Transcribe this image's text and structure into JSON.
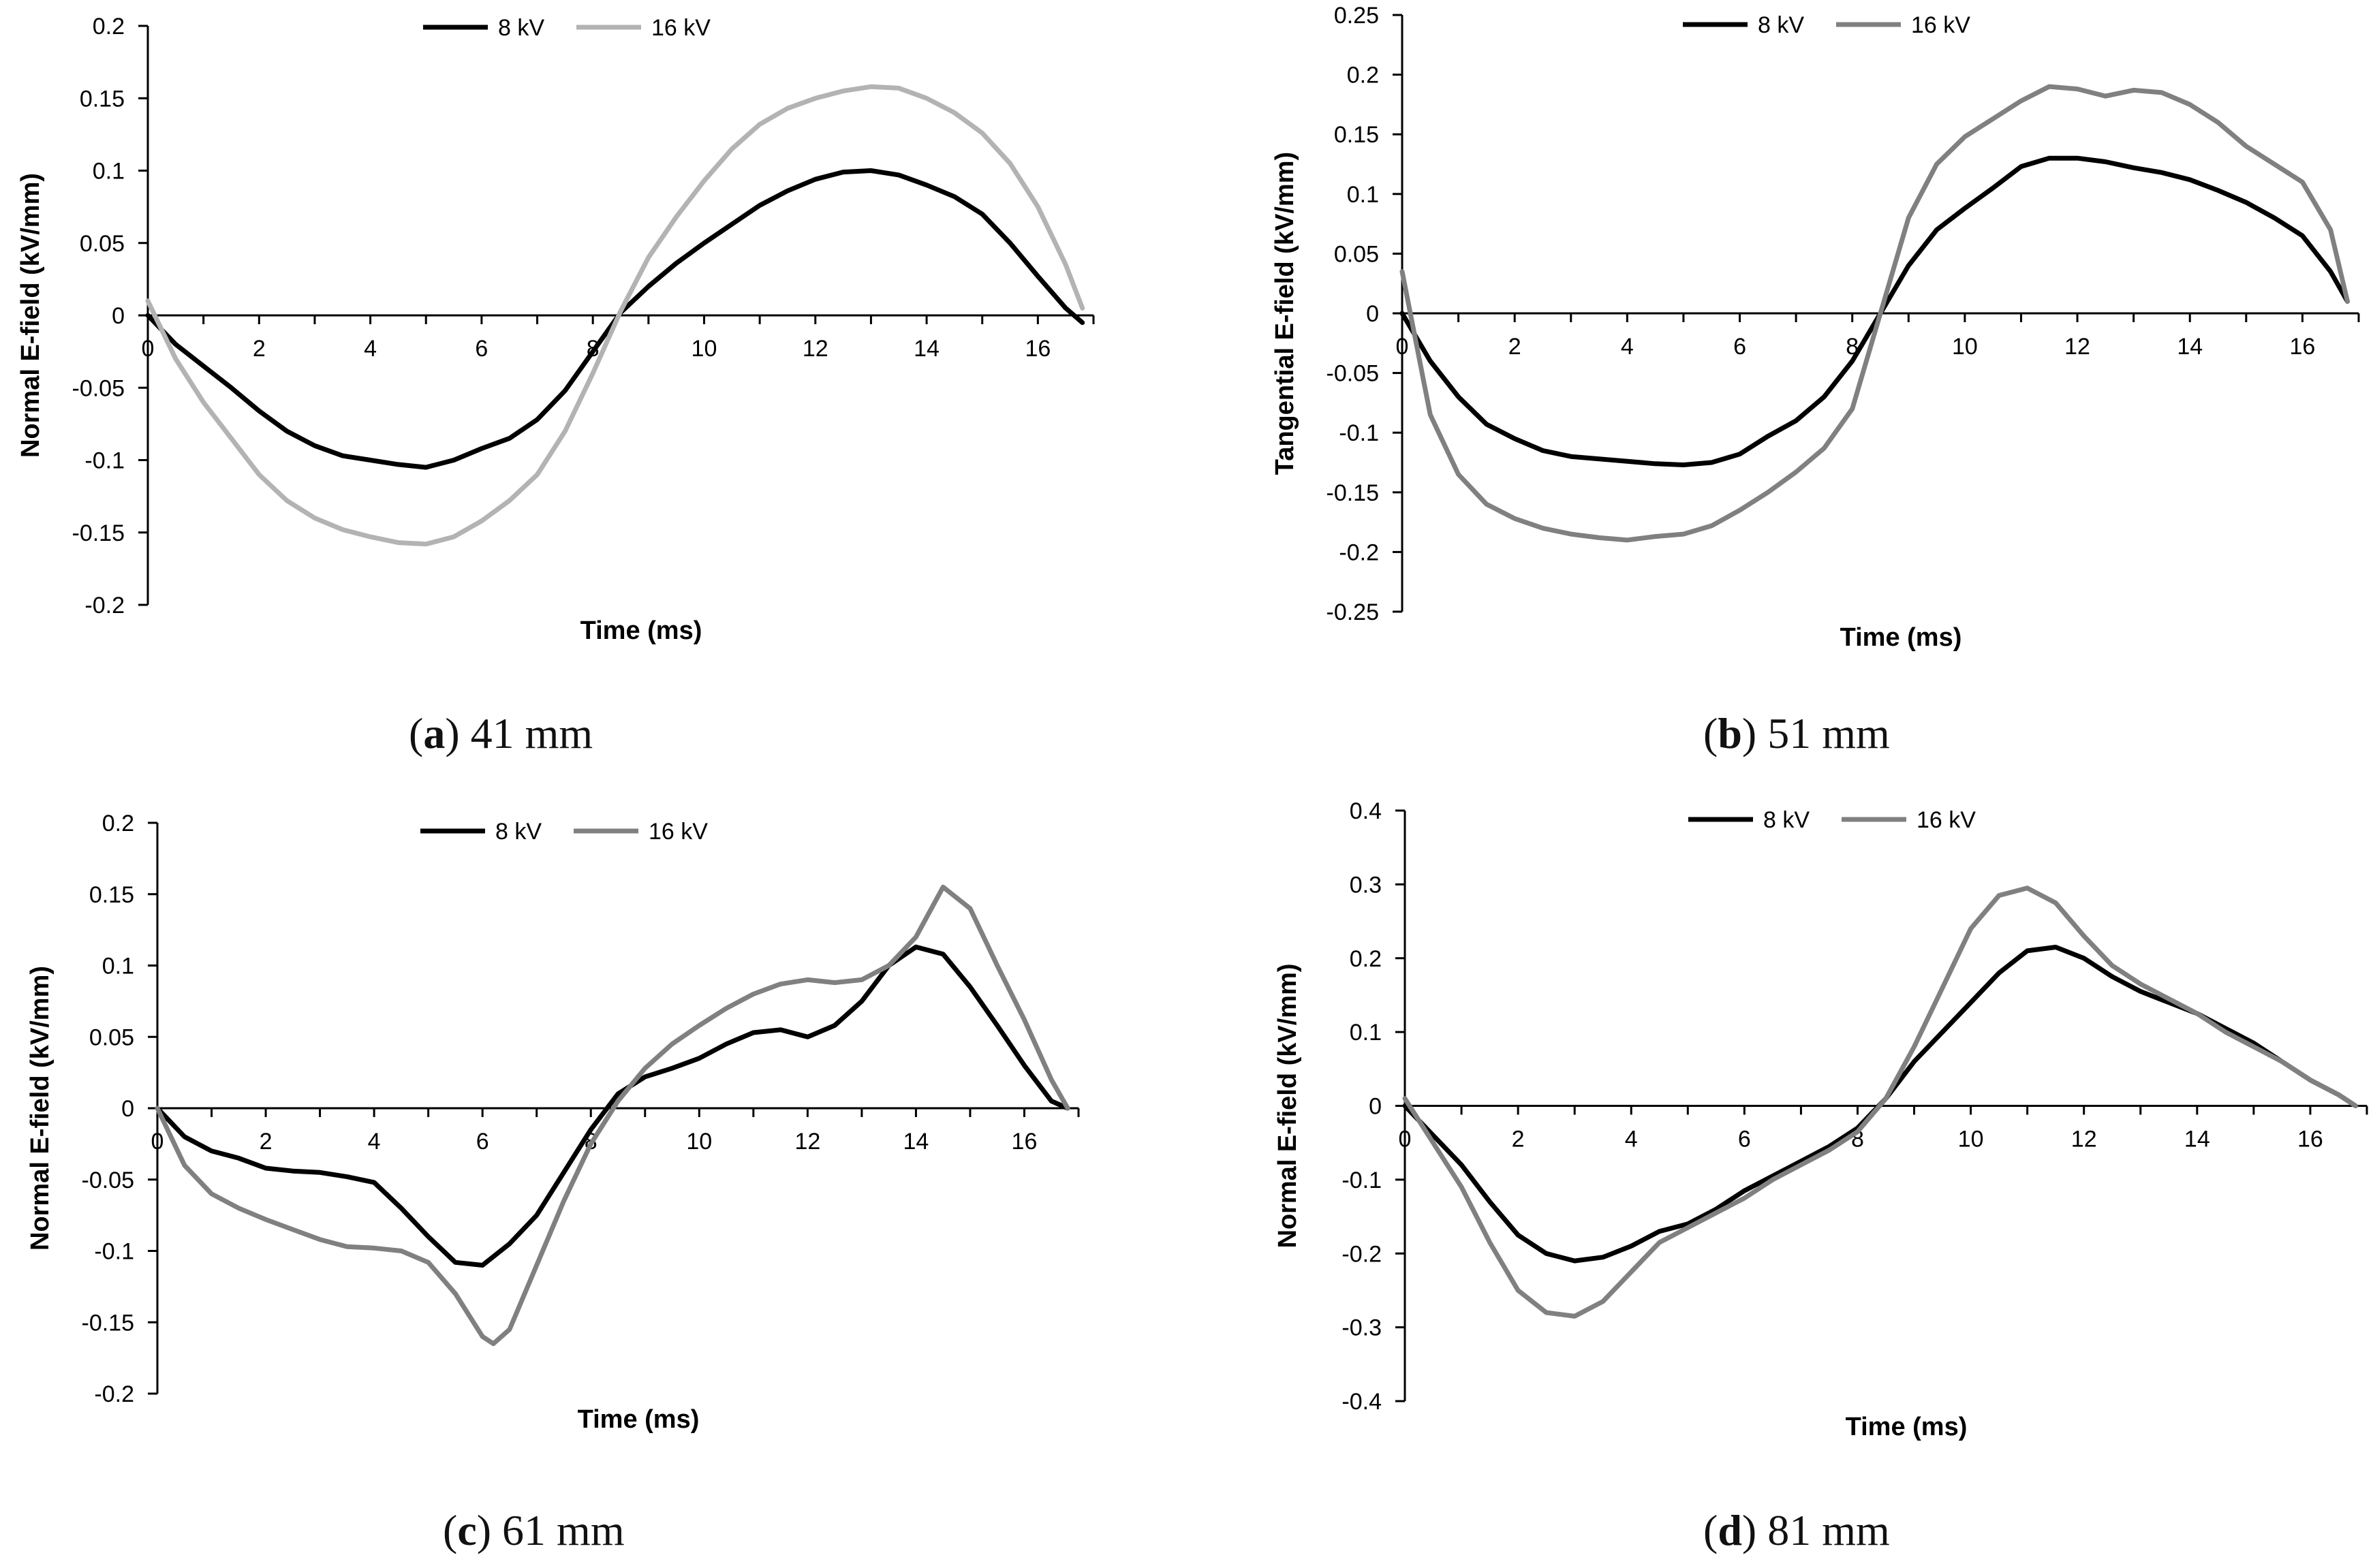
{
  "colors": {
    "series_8kv": "#000000",
    "series_16kv_a": "#b3b3b3",
    "series_16kv": "#808080",
    "axis": "#000000"
  },
  "chart_data": [
    {
      "type": "line",
      "caption_letter": "a",
      "caption_text": "41 mm",
      "xlabel": "Time (ms)",
      "ylabel": "Normal E-field (kV/mm)",
      "xlim": [
        0,
        17
      ],
      "ylim": [
        -0.2,
        0.2
      ],
      "xticks": [
        0,
        2,
        4,
        6,
        8,
        10,
        12,
        14,
        16
      ],
      "yticks": [
        -0.2,
        -0.15,
        -0.1,
        -0.05,
        0,
        0.05,
        0.1,
        0.15,
        0.2
      ],
      "ytick_labels": [
        "-0.2",
        "-0.15",
        "-0.1",
        "-0.05",
        "0",
        "0.05",
        "0.1",
        "0.15",
        "0.2"
      ],
      "legend_position": "top-center",
      "series": [
        {
          "name": "8 kV",
          "color_key": "series_8kv",
          "x": [
            0,
            0.5,
            1,
            1.5,
            2,
            2.5,
            3,
            3.5,
            4,
            4.5,
            5,
            5.5,
            6,
            6.5,
            7,
            7.5,
            8,
            8.5,
            9,
            9.5,
            10,
            10.5,
            11,
            11.5,
            12,
            12.5,
            13,
            13.5,
            14,
            14.5,
            15,
            15.5,
            16,
            16.5,
            16.8
          ],
          "y": [
            0,
            -0.02,
            -0.035,
            -0.05,
            -0.066,
            -0.08,
            -0.09,
            -0.097,
            -0.1,
            -0.103,
            -0.105,
            -0.1,
            -0.092,
            -0.085,
            -0.072,
            -0.052,
            -0.025,
            0.002,
            0.02,
            0.036,
            0.05,
            0.063,
            0.076,
            0.086,
            0.094,
            0.099,
            0.1,
            0.097,
            0.09,
            0.082,
            0.07,
            0.05,
            0.027,
            0.005,
            -0.005
          ]
        },
        {
          "name": "16 kV",
          "color_key": "series_16kv_a",
          "x": [
            0,
            0.5,
            1,
            1.5,
            2,
            2.5,
            3,
            3.5,
            4,
            4.5,
            5,
            5.5,
            6,
            6.5,
            7,
            7.5,
            8,
            8.5,
            9,
            9.5,
            10,
            10.5,
            11,
            11.5,
            12,
            12.5,
            13,
            13.5,
            14,
            14.5,
            15,
            15.5,
            16,
            16.5,
            16.8
          ],
          "y": [
            0.01,
            -0.03,
            -0.06,
            -0.085,
            -0.11,
            -0.128,
            -0.14,
            -0.148,
            -0.153,
            -0.157,
            -0.158,
            -0.153,
            -0.142,
            -0.128,
            -0.11,
            -0.08,
            -0.04,
            0.003,
            0.04,
            0.068,
            0.093,
            0.115,
            0.132,
            0.143,
            0.15,
            0.155,
            0.158,
            0.157,
            0.15,
            0.14,
            0.126,
            0.105,
            0.075,
            0.035,
            0.005
          ]
        }
      ]
    },
    {
      "type": "line",
      "caption_letter": "b",
      "caption_text": "51 mm",
      "xlabel": "Time (ms)",
      "ylabel": "Tangential E-field (kV/mm)",
      "xlim": [
        0,
        17
      ],
      "ylim": [
        -0.25,
        0.25
      ],
      "xticks": [
        0,
        2,
        4,
        6,
        8,
        10,
        12,
        14,
        16
      ],
      "yticks": [
        -0.25,
        -0.2,
        -0.15,
        -0.1,
        -0.05,
        0,
        0.05,
        0.1,
        0.15,
        0.2,
        0.25
      ],
      "ytick_labels": [
        "-0.25",
        "-0.2",
        "-0.15",
        "-0.1",
        "-0.05",
        "0",
        "0.05",
        "0.1",
        "0.15",
        "0.2",
        "0.25"
      ],
      "legend_position": "top-center",
      "series": [
        {
          "name": "8 kV",
          "color_key": "series_8kv",
          "x": [
            0,
            0.5,
            1,
            1.5,
            2,
            2.5,
            3,
            3.5,
            4,
            4.5,
            5,
            5.5,
            6,
            6.5,
            7,
            7.5,
            8,
            8.5,
            9,
            9.5,
            10,
            10.5,
            11,
            11.5,
            12,
            12.5,
            13,
            13.5,
            14,
            14.5,
            15,
            15.5,
            16,
            16.5,
            16.8
          ],
          "y": [
            0,
            -0.04,
            -0.07,
            -0.093,
            -0.105,
            -0.115,
            -0.12,
            -0.122,
            -0.124,
            -0.126,
            -0.127,
            -0.125,
            -0.118,
            -0.103,
            -0.09,
            -0.07,
            -0.04,
            0,
            0.04,
            0.07,
            0.088,
            0.105,
            0.123,
            0.13,
            0.13,
            0.127,
            0.122,
            0.118,
            0.112,
            0.103,
            0.093,
            0.08,
            0.065,
            0.035,
            0.01
          ]
        },
        {
          "name": "16 kV",
          "color_key": "series_16kv",
          "x": [
            0,
            0.5,
            1,
            1.5,
            2,
            2.5,
            3,
            3.5,
            4,
            4.5,
            5,
            5.5,
            6,
            6.5,
            7,
            7.5,
            8,
            8.5,
            9,
            9.5,
            10,
            10.5,
            11,
            11.5,
            12,
            12.5,
            13,
            13.5,
            14,
            14.5,
            15,
            15.5,
            16,
            16.5,
            16.8
          ],
          "y": [
            0.035,
            -0.085,
            -0.135,
            -0.16,
            -0.172,
            -0.18,
            -0.185,
            -0.188,
            -0.19,
            -0.187,
            -0.185,
            -0.178,
            -0.165,
            -0.15,
            -0.133,
            -0.113,
            -0.08,
            0,
            0.08,
            0.125,
            0.148,
            0.163,
            0.178,
            0.19,
            0.188,
            0.182,
            0.187,
            0.185,
            0.175,
            0.16,
            0.14,
            0.125,
            0.11,
            0.07,
            0.01
          ]
        }
      ]
    },
    {
      "type": "line",
      "caption_letter": "c",
      "caption_text": "61 mm",
      "xlabel": "Time (ms)",
      "ylabel": "Normal E-field (kV/mm)",
      "xlim": [
        0,
        17
      ],
      "ylim": [
        -0.2,
        0.2
      ],
      "xticks": [
        0,
        2,
        4,
        6,
        8,
        10,
        12,
        14,
        16
      ],
      "yticks": [
        -0.2,
        -0.15,
        -0.1,
        -0.05,
        0,
        0.05,
        0.1,
        0.15,
        0.2
      ],
      "ytick_labels": [
        "-0.2",
        "-0.15",
        "-0.1",
        "-0.05",
        "0",
        "0.05",
        "0.1",
        "0.15",
        "0.2"
      ],
      "legend_position": "top-center",
      "series": [
        {
          "name": "8 kV",
          "color_key": "series_8kv",
          "x": [
            0,
            0.5,
            1,
            1.5,
            2,
            2.5,
            3,
            3.5,
            4,
            4.5,
            5,
            5.5,
            6,
            6.5,
            7,
            7.5,
            8,
            8.5,
            9,
            9.5,
            10,
            10.5,
            11,
            11.5,
            12,
            12.5,
            13,
            13.5,
            14,
            14.5,
            15,
            15.5,
            16,
            16.5,
            16.8
          ],
          "y": [
            0,
            -0.02,
            -0.03,
            -0.035,
            -0.042,
            -0.044,
            -0.045,
            -0.048,
            -0.052,
            -0.07,
            -0.09,
            -0.108,
            -0.11,
            -0.095,
            -0.075,
            -0.045,
            -0.015,
            0.01,
            0.022,
            0.028,
            0.035,
            0.045,
            0.053,
            0.055,
            0.05,
            0.058,
            0.075,
            0.1,
            0.113,
            0.108,
            0.085,
            0.058,
            0.03,
            0.005,
            0
          ]
        },
        {
          "name": "16 kV",
          "color_key": "series_16kv",
          "x": [
            0,
            0.5,
            1,
            1.5,
            2,
            2.5,
            3,
            3.5,
            4,
            4.5,
            5,
            5.5,
            6,
            6.2,
            6.5,
            7,
            7.5,
            8,
            8.5,
            9,
            9.5,
            10,
            10.5,
            11,
            11.5,
            12,
            12.5,
            13,
            13.5,
            14,
            14.5,
            15,
            15.5,
            16,
            16.5,
            16.8
          ],
          "y": [
            0,
            -0.04,
            -0.06,
            -0.07,
            -0.078,
            -0.085,
            -0.092,
            -0.097,
            -0.098,
            -0.1,
            -0.108,
            -0.13,
            -0.16,
            -0.165,
            -0.155,
            -0.11,
            -0.065,
            -0.025,
            0.005,
            0.028,
            0.045,
            0.058,
            0.07,
            0.08,
            0.087,
            0.09,
            0.088,
            0.09,
            0.1,
            0.12,
            0.155,
            0.14,
            0.1,
            0.062,
            0.02,
            0
          ]
        }
      ]
    },
    {
      "type": "line",
      "caption_letter": "d",
      "caption_text": "81 mm",
      "xlabel": "Time (ms)",
      "ylabel": "Normal E-field (kV/mm)",
      "xlim": [
        0,
        17
      ],
      "ylim": [
        -0.4,
        0.4
      ],
      "xticks": [
        0,
        2,
        4,
        6,
        8,
        10,
        12,
        14,
        16
      ],
      "yticks": [
        -0.4,
        -0.3,
        -0.2,
        -0.1,
        0,
        0.1,
        0.2,
        0.3,
        0.4
      ],
      "ytick_labels": [
        "-0.4",
        "-0.3",
        "-0.2",
        "-0.1",
        "0",
        "0.1",
        "0.2",
        "0.3",
        "0.4"
      ],
      "legend_position": "top-center",
      "series": [
        {
          "name": "8 kV",
          "color_key": "series_8kv",
          "x": [
            0,
            0.5,
            1,
            1.5,
            2,
            2.5,
            3,
            3.5,
            4,
            4.5,
            5,
            5.5,
            6,
            6.5,
            7,
            7.5,
            8,
            8.5,
            9,
            9.5,
            10,
            10.5,
            11,
            11.5,
            12,
            12.5,
            13,
            13.5,
            14,
            14.5,
            15,
            15.5,
            16,
            16.5,
            16.8
          ],
          "y": [
            0,
            -0.04,
            -0.08,
            -0.13,
            -0.175,
            -0.2,
            -0.21,
            -0.205,
            -0.19,
            -0.17,
            -0.16,
            -0.14,
            -0.115,
            -0.095,
            -0.075,
            -0.055,
            -0.03,
            0.01,
            0.06,
            0.1,
            0.14,
            0.18,
            0.21,
            0.215,
            0.2,
            0.175,
            0.155,
            0.14,
            0.125,
            0.105,
            0.085,
            0.06,
            0.035,
            0.015,
            0
          ]
        },
        {
          "name": "16 kV",
          "color_key": "series_16kv",
          "x": [
            0,
            0.5,
            1,
            1.5,
            2,
            2.5,
            3,
            3.5,
            4,
            4.5,
            5,
            5.5,
            6,
            6.5,
            7,
            7.5,
            8,
            8.5,
            9,
            9.5,
            10,
            10.5,
            11,
            11.5,
            12,
            12.5,
            13,
            13.5,
            14,
            14.5,
            15,
            15.5,
            16,
            16.5,
            16.8
          ],
          "y": [
            0.01,
            -0.05,
            -0.11,
            -0.185,
            -0.25,
            -0.28,
            -0.285,
            -0.265,
            -0.225,
            -0.185,
            -0.165,
            -0.145,
            -0.125,
            -0.1,
            -0.08,
            -0.06,
            -0.035,
            0.01,
            0.08,
            0.16,
            0.24,
            0.285,
            0.295,
            0.275,
            0.23,
            0.19,
            0.165,
            0.145,
            0.125,
            0.1,
            0.08,
            0.06,
            0.035,
            0.015,
            0
          ]
        }
      ]
    }
  ]
}
